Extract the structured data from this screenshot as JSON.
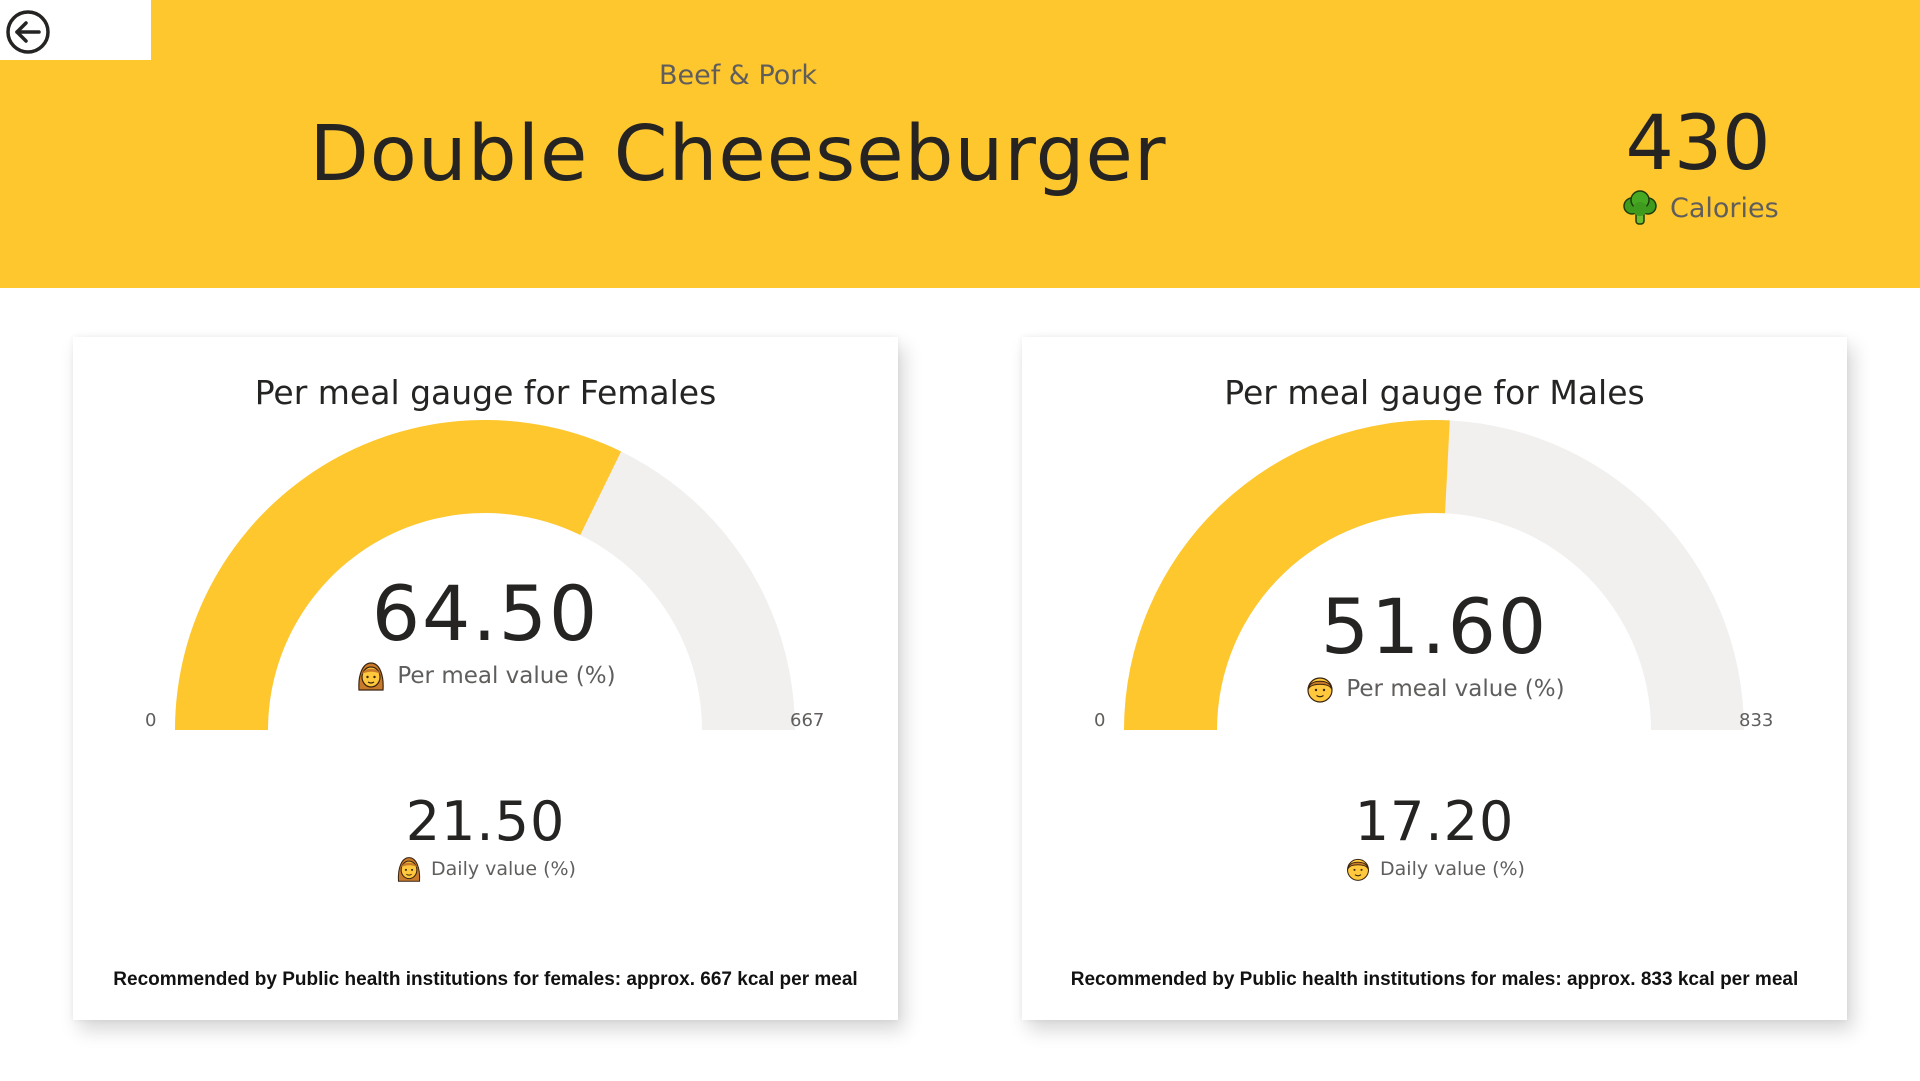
{
  "header": {
    "category": "Beef & Pork",
    "title": "Double Cheeseburger",
    "calories_value": "430",
    "calories_label": "Calories",
    "calories_icon": "broccoli-icon",
    "back_icon": "back-arrow-icon",
    "background_color": "#FEC72E"
  },
  "female": {
    "title": "Per meal gauge for Females",
    "gauge_value": 430,
    "gauge_min": 0,
    "gauge_max": 667,
    "min_label": "0",
    "max_label": "667",
    "per_meal_value": "64.50",
    "per_meal_label": "Per meal value (%)",
    "daily_value": "21.50",
    "daily_label": "Daily value (%)",
    "icon": "woman-emoji-icon",
    "footnote": "Recommended by Public health institutions for females: approx. 667 kcal per meal"
  },
  "male": {
    "title": "Per meal gauge for Males",
    "gauge_value": 430,
    "gauge_min": 0,
    "gauge_max": 833,
    "min_label": "0",
    "max_label": "833",
    "per_meal_value": "51.60",
    "per_meal_label": "Per meal value (%)",
    "daily_value": "17.20",
    "daily_label": "Daily value (%)",
    "icon": "man-emoji-icon",
    "footnote": "Recommended by Public health institutions for males: approx. 833 kcal per meal"
  },
  "colors": {
    "gauge_fill": "#FEC72E",
    "gauge_track": "#F1F0EF",
    "text_dark": "#252423",
    "text_muted": "#605e5c"
  }
}
